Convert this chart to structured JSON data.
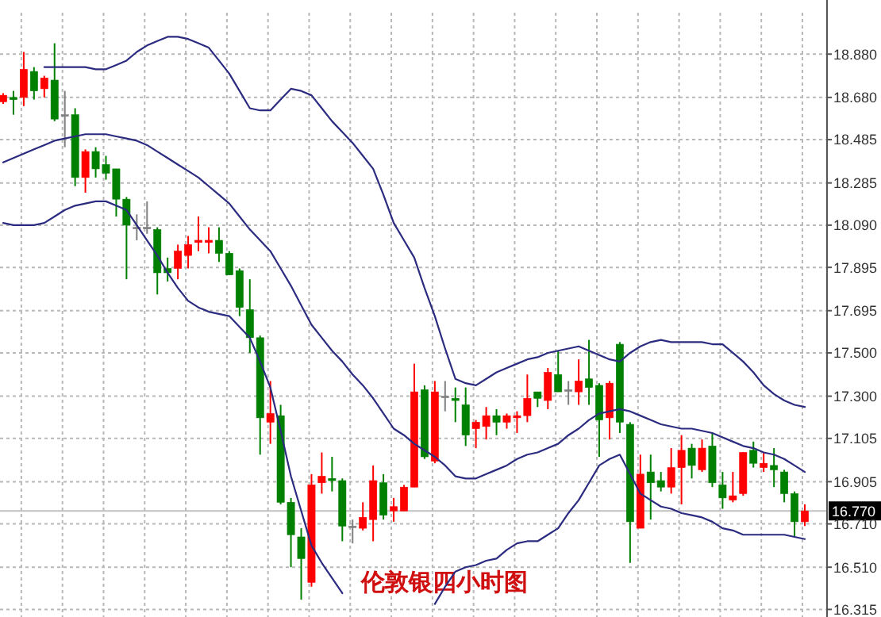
{
  "chart_data": {
    "type": "candlestick",
    "title": "伦敦银四小时图",
    "categories": [
      null,
      null,
      null,
      null,
      null,
      null,
      null,
      null,
      null,
      null,
      null,
      null,
      null,
      null,
      null,
      null,
      null,
      null,
      null,
      null,
      null,
      null,
      null,
      null,
      null,
      null,
      null,
      null,
      null,
      null,
      null,
      null,
      null,
      null,
      null,
      null,
      null,
      null,
      null,
      null,
      null,
      null,
      null,
      null,
      null,
      null,
      null,
      null,
      null,
      null,
      null,
      null,
      null,
      null,
      null,
      null,
      null,
      null,
      null,
      null,
      null,
      null,
      null,
      null,
      null,
      null,
      null,
      null,
      null,
      null,
      null,
      null,
      null,
      null,
      null,
      null,
      null,
      null,
      null
    ],
    "ohlc": [
      [
        18.66,
        18.7,
        18.65,
        18.69
      ],
      [
        18.68,
        18.71,
        18.6,
        18.67
      ],
      [
        18.68,
        18.89,
        18.64,
        18.81
      ],
      [
        18.8,
        18.82,
        18.67,
        18.71
      ],
      [
        18.72,
        18.78,
        18.68,
        18.77
      ],
      [
        18.76,
        18.93,
        18.57,
        18.58
      ],
      [
        18.6,
        18.71,
        18.45,
        18.6
      ],
      [
        18.6,
        18.63,
        18.27,
        18.31
      ],
      [
        18.31,
        18.44,
        18.24,
        18.43
      ],
      [
        18.43,
        18.45,
        18.31,
        18.35
      ],
      [
        18.37,
        18.41,
        18.3,
        18.33
      ],
      [
        18.35,
        18.35,
        18.13,
        18.21
      ],
      [
        18.21,
        18.22,
        17.84,
        18.09
      ],
      [
        18.08,
        18.14,
        18.02,
        18.08
      ],
      [
        18.08,
        18.2,
        18.05,
        18.08
      ],
      [
        18.07,
        18.08,
        17.77,
        17.87
      ],
      [
        17.89,
        17.94,
        17.83,
        17.87
      ],
      [
        17.89,
        18.0,
        17.84,
        17.97
      ],
      [
        17.95,
        18.04,
        17.89,
        18.0
      ],
      [
        18.01,
        18.13,
        17.97,
        18.02
      ],
      [
        18.01,
        18.08,
        17.96,
        18.02
      ],
      [
        18.02,
        18.08,
        17.92,
        17.96
      ],
      [
        17.96,
        17.97,
        17.86,
        17.86
      ],
      [
        17.88,
        17.89,
        17.67,
        17.71
      ],
      [
        17.7,
        17.84,
        17.5,
        17.57
      ],
      [
        17.57,
        17.58,
        17.03,
        17.2
      ],
      [
        17.18,
        17.37,
        17.08,
        17.22
      ],
      [
        17.21,
        17.26,
        16.8,
        16.81
      ],
      [
        16.81,
        16.83,
        16.51,
        16.66
      ],
      [
        16.65,
        16.69,
        16.36,
        16.55
      ],
      [
        16.44,
        16.94,
        16.42,
        16.89
      ],
      [
        16.9,
        17.04,
        16.85,
        16.93
      ],
      [
        16.92,
        17.02,
        16.86,
        16.91
      ],
      [
        16.91,
        16.92,
        16.63,
        16.7
      ],
      [
        16.7,
        16.73,
        16.62,
        16.7
      ],
      [
        16.69,
        16.81,
        16.68,
        16.74
      ],
      [
        16.73,
        16.98,
        16.63,
        16.91
      ],
      [
        16.9,
        16.94,
        16.73,
        16.75
      ],
      [
        16.77,
        16.83,
        16.72,
        16.79
      ],
      [
        16.77,
        16.89,
        16.77,
        16.88
      ],
      [
        16.88,
        17.45,
        16.88,
        17.32
      ],
      [
        17.33,
        17.35,
        17.01,
        17.02
      ],
      [
        17.0,
        17.37,
        16.99,
        17.32
      ],
      [
        17.3,
        17.37,
        17.23,
        17.3
      ],
      [
        17.29,
        17.34,
        17.18,
        17.28
      ],
      [
        17.26,
        17.34,
        17.07,
        17.12
      ],
      [
        17.15,
        17.19,
        17.06,
        17.18
      ],
      [
        17.16,
        17.25,
        17.1,
        17.21
      ],
      [
        17.21,
        17.24,
        17.12,
        17.18
      ],
      [
        17.18,
        17.22,
        17.15,
        17.21
      ],
      [
        17.2,
        17.23,
        17.13,
        17.21
      ],
      [
        17.21,
        17.4,
        17.18,
        17.29
      ],
      [
        17.32,
        17.32,
        17.25,
        17.29
      ],
      [
        17.28,
        17.43,
        17.24,
        17.41
      ],
      [
        17.4,
        17.51,
        17.32,
        17.32
      ],
      [
        17.33,
        17.37,
        17.26,
        17.33
      ],
      [
        17.32,
        17.47,
        17.26,
        17.37
      ],
      [
        17.38,
        17.56,
        17.26,
        17.34
      ],
      [
        17.35,
        17.36,
        17.02,
        17.19
      ],
      [
        17.2,
        17.37,
        17.1,
        17.36
      ],
      [
        17.54,
        17.55,
        17.13,
        17.18
      ],
      [
        17.17,
        17.18,
        16.53,
        16.72
      ],
      [
        16.69,
        17.03,
        16.69,
        16.94
      ],
      [
        16.95,
        17.03,
        16.73,
        16.9
      ],
      [
        16.91,
        16.95,
        16.86,
        16.88
      ],
      [
        16.88,
        17.06,
        16.85,
        16.97
      ],
      [
        16.97,
        17.12,
        16.8,
        17.05
      ],
      [
        17.06,
        17.08,
        16.92,
        16.98
      ],
      [
        16.96,
        17.1,
        16.95,
        17.06
      ],
      [
        17.07,
        17.13,
        16.88,
        16.9
      ],
      [
        16.89,
        16.95,
        16.78,
        16.83
      ],
      [
        16.82,
        16.95,
        16.81,
        16.84
      ],
      [
        16.85,
        17.04,
        16.84,
        17.04
      ],
      [
        17.05,
        17.09,
        16.97,
        16.99
      ],
      [
        16.97,
        17.04,
        16.95,
        16.99
      ],
      [
        16.98,
        17.06,
        16.88,
        16.96
      ],
      [
        16.95,
        16.96,
        16.81,
        16.85
      ],
      [
        16.85,
        16.86,
        16.65,
        16.72
      ],
      [
        16.72,
        16.8,
        16.7,
        16.77
      ]
    ],
    "colors": [
      "#ff0000",
      "#008000",
      "#ff0000",
      "#008000",
      "#ff0000",
      "#008000",
      "#808080",
      "#008000",
      "#ff0000",
      "#008000",
      "#008000",
      "#008000",
      "#008000",
      "#808080",
      "#808080",
      "#008000",
      "#008000",
      "#ff0000",
      "#ff0000",
      "#ff0000",
      "#ff0000",
      "#008000",
      "#008000",
      "#008000",
      "#008000",
      "#008000",
      "#ff0000",
      "#008000",
      "#008000",
      "#008000",
      "#ff0000",
      "#ff0000",
      "#008000",
      "#008000",
      "#808080",
      "#ff0000",
      "#ff0000",
      "#008000",
      "#ff0000",
      "#ff0000",
      "#ff0000",
      "#008000",
      "#ff0000",
      "#808080",
      "#008000",
      "#008000",
      "#ff0000",
      "#ff0000",
      "#008000",
      "#ff0000",
      "#ff0000",
      "#ff0000",
      "#008000",
      "#ff0000",
      "#008000",
      "#808080",
      "#ff0000",
      "#008000",
      "#008000",
      "#ff0000",
      "#008000",
      "#008000",
      "#ff0000",
      "#008000",
      "#008000",
      "#ff0000",
      "#ff0000",
      "#008000",
      "#ff0000",
      "#008000",
      "#008000",
      "#ff0000",
      "#ff0000",
      "#008000",
      "#ff0000",
      "#008000",
      "#008000",
      "#008000",
      "#ff0000"
    ],
    "series": [
      {
        "type": "line",
        "color": "#2b2b80",
        "values": [
          null,
          null,
          null,
          null,
          18.82,
          18.82,
          18.82,
          18.82,
          18.82,
          18.81,
          18.81,
          18.83,
          18.85,
          18.89,
          18.92,
          18.94,
          18.96,
          18.96,
          18.95,
          18.93,
          18.91,
          18.85,
          18.79,
          18.71,
          18.63,
          18.62,
          18.62,
          18.67,
          18.72,
          18.71,
          18.69,
          18.63,
          18.57,
          18.52,
          18.47,
          18.41,
          18.35,
          18.23,
          18.1,
          18.02,
          17.94,
          17.8,
          17.67,
          17.52,
          17.38,
          17.36,
          17.35,
          17.38,
          17.41,
          17.43,
          17.45,
          17.47,
          17.48,
          17.5,
          17.51,
          17.52,
          17.53,
          17.51,
          17.49,
          17.47,
          17.46,
          17.5,
          17.53,
          17.55,
          17.56,
          17.55,
          17.55,
          17.55,
          17.55,
          17.54,
          17.54,
          17.5,
          17.46,
          17.41,
          17.35,
          17.31,
          17.28,
          17.26,
          17.25
        ]
      },
      {
        "type": "line",
        "color": "#2b2b80",
        "values": [
          18.38,
          18.4,
          18.42,
          18.44,
          18.46,
          18.48,
          18.49,
          18.5,
          18.51,
          18.51,
          18.51,
          18.5,
          18.49,
          18.48,
          18.46,
          18.43,
          18.4,
          18.37,
          18.34,
          18.31,
          18.27,
          18.23,
          18.19,
          18.13,
          18.07,
          18.02,
          17.97,
          17.89,
          17.81,
          17.72,
          17.63,
          17.57,
          17.51,
          17.46,
          17.4,
          17.35,
          17.29,
          17.22,
          17.15,
          17.12,
          17.08,
          17.05,
          17.02,
          16.98,
          16.93,
          16.92,
          16.92,
          16.94,
          16.96,
          16.98,
          17.01,
          17.03,
          17.04,
          17.06,
          17.08,
          17.12,
          17.15,
          17.19,
          17.22,
          17.23,
          17.24,
          17.23,
          17.21,
          17.19,
          17.17,
          17.16,
          17.15,
          17.15,
          17.14,
          17.13,
          17.11,
          17.09,
          17.07,
          17.06,
          17.04,
          17.03,
          17.01,
          16.98,
          16.95
        ]
      },
      {
        "type": "line",
        "color": "#2b2b80",
        "values": [
          18.1,
          18.09,
          18.09,
          18.09,
          18.1,
          18.13,
          18.16,
          18.18,
          18.19,
          18.2,
          18.2,
          18.18,
          18.16,
          18.09,
          18.02,
          17.95,
          17.87,
          17.8,
          17.74,
          17.71,
          17.69,
          17.68,
          17.67,
          17.62,
          17.57,
          17.46,
          17.34,
          17.14,
          16.93,
          16.77,
          16.61,
          16.53,
          16.46,
          16.39,
          null,
          null,
          null,
          null,
          null,
          null,
          null,
          null,
          16.34,
          16.42,
          16.49,
          16.51,
          16.52,
          16.54,
          16.55,
          16.59,
          16.62,
          16.63,
          16.63,
          16.66,
          16.69,
          16.76,
          16.82,
          16.9,
          16.98,
          17.01,
          17.03,
          16.94,
          16.85,
          16.82,
          16.79,
          16.78,
          16.76,
          16.75,
          16.74,
          16.72,
          16.69,
          16.68,
          16.66,
          16.66,
          16.66,
          16.66,
          16.66,
          16.65,
          16.64
        ]
      }
    ],
    "ylim": [
      16.28,
      19.13
    ],
    "yticks": [
      {
        "value": 18.88,
        "label": "18.880"
      },
      {
        "value": 18.68,
        "label": "18.680"
      },
      {
        "value": 18.485,
        "label": "18.485"
      },
      {
        "value": 18.285,
        "label": "18.285"
      },
      {
        "value": 18.09,
        "label": "18.090"
      },
      {
        "value": 17.895,
        "label": "17.895"
      },
      {
        "value": 17.695,
        "label": "17.695"
      },
      {
        "value": 17.5,
        "label": "17.500"
      },
      {
        "value": 17.3,
        "label": "17.300"
      },
      {
        "value": 17.105,
        "label": "17.105"
      },
      {
        "value": 16.905,
        "label": "16.905"
      },
      {
        "value": 16.71,
        "label": "16.710"
      },
      {
        "value": 16.51,
        "label": "16.510"
      },
      {
        "value": 16.315,
        "label": "16.315"
      }
    ],
    "ref_lines": [
      {
        "axis": "y",
        "value": 16.77,
        "label": "16.770",
        "color": "#c0c0c0"
      }
    ],
    "grid": true
  }
}
